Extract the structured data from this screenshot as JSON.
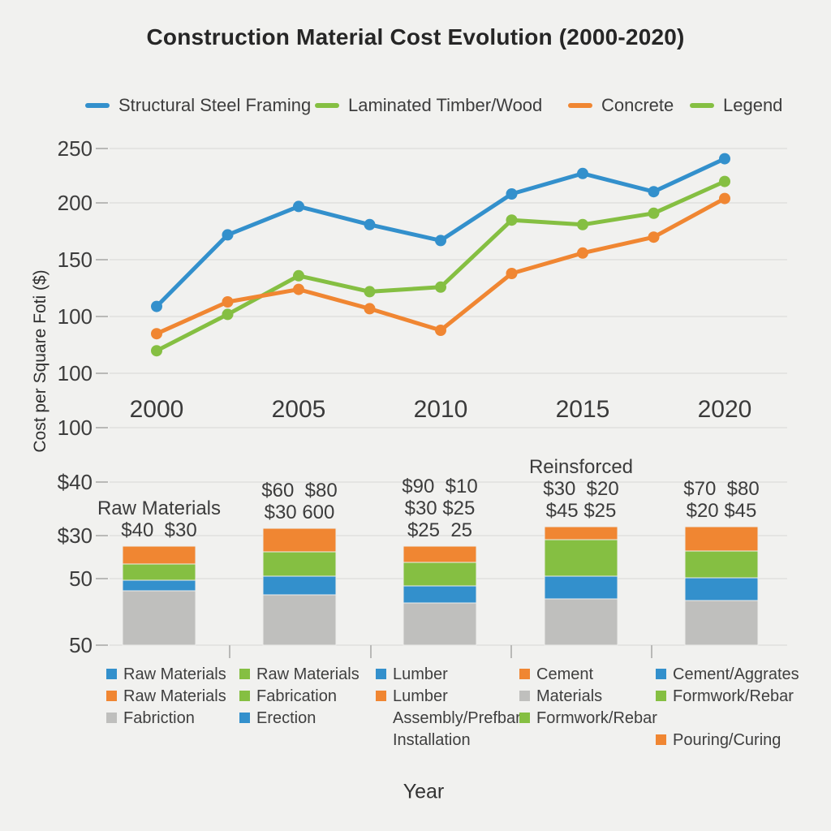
{
  "title": "Construction Material Cost Evolution (2000-2020)",
  "colors": {
    "blue": "#3390cc",
    "green": "#85bf42",
    "orange": "#f08632",
    "gray": "#bfbfbd",
    "grid": "#dcdcda",
    "tick_text": "#3d3d3d",
    "background": "#f1f1ef"
  },
  "legend_top": [
    {
      "label": "Structural Steel Framing",
      "color": "blue"
    },
    {
      "label": "Laminated Timber/Wood",
      "color": "green"
    },
    {
      "label": "Concrete",
      "color": "orange"
    },
    {
      "label": "Legend",
      "color": "green"
    }
  ],
  "chart_data": [
    {
      "type": "line",
      "title": "Construction Material Cost Evolution (2000-2020)",
      "xlabel": "Year",
      "ylabel": "Cost per Square Foti ($)",
      "x_tick_labels": [
        "2000",
        "2005",
        "2010",
        "2015",
        "2020"
      ],
      "y_tick_labels": [
        "250",
        "200",
        "150",
        "100",
        "100",
        "100"
      ],
      "ylim": [
        100,
        260
      ],
      "grid": true,
      "legend_position": "top",
      "x": [
        2000,
        2002.5,
        2005,
        2007.5,
        2010,
        2012.5,
        2015,
        2017.5,
        2020
      ],
      "series": [
        {
          "name": "Structural Steel Framing",
          "color": "blue",
          "values": [
            111,
            174,
            199,
            183,
            169,
            210,
            228,
            212,
            241
          ]
        },
        {
          "name": "Laminated Timber/Wood",
          "color": "green",
          "values": [
            72,
            104,
            138,
            124,
            128,
            187,
            183,
            193,
            221
          ]
        },
        {
          "name": "Concrete",
          "color": "orange",
          "values": [
            87,
            115,
            126,
            109,
            90,
            140,
            158,
            172,
            206
          ]
        }
      ]
    },
    {
      "type": "bar",
      "stacked": true,
      "xlabel": "Year",
      "y_tick_labels": [
        "$40",
        "$30",
        "50",
        "50"
      ],
      "categories": [
        "2000",
        "2005",
        "2010",
        "2015",
        "2020"
      ],
      "segment_order_bottom_to_top": [
        "gray",
        "blue",
        "green",
        "orange"
      ],
      "bars": [
        {
          "labels": [
            "Raw Materials",
            "$40  $30"
          ],
          "segments": [
            [
              "gray",
              67
            ],
            [
              "blue",
              13
            ],
            [
              "green",
              20
            ],
            [
              "orange",
              22
            ]
          ]
        },
        {
          "labels": [
            "$60  $80",
            "$30 600"
          ],
          "segments": [
            [
              "gray",
              62
            ],
            [
              "blue",
              23
            ],
            [
              "green",
              30
            ],
            [
              "orange",
              29
            ]
          ]
        },
        {
          "labels": [
            "$90  $10",
            "$30 $25",
            "$25  25"
          ],
          "segments": [
            [
              "gray",
              52
            ],
            [
              "blue",
              21
            ],
            [
              "green",
              29
            ],
            [
              "orange",
              20
            ]
          ]
        },
        {
          "labels": [
            "Reinsforced",
            "$30  $20",
            "$45 $25"
          ],
          "segments": [
            [
              "gray",
              57
            ],
            [
              "blue",
              28
            ],
            [
              "green",
              45
            ],
            [
              "orange",
              16
            ]
          ]
        },
        {
          "labels": [
            "$70  $80",
            "$20 $45"
          ],
          "segments": [
            [
              "gray",
              55
            ],
            [
              "blue",
              28
            ],
            [
              "green",
              33
            ],
            [
              "orange",
              30
            ]
          ]
        }
      ]
    }
  ],
  "legend_bottom": [
    [
      {
        "swatch": "blue",
        "label": "Raw Materials"
      },
      {
        "swatch": "orange",
        "label": "Raw Materials"
      },
      {
        "swatch": "gray",
        "label": "Fabriction"
      }
    ],
    [
      {
        "swatch": "green",
        "label": "Raw Materials"
      },
      {
        "swatch": "green",
        "label": "Fabrication"
      },
      {
        "swatch": "blue",
        "label": "Erection"
      }
    ],
    [
      {
        "swatch": "blue",
        "label": "Lumber"
      },
      {
        "swatch": "orange",
        "label": "Lumber"
      },
      {
        "swatch": null,
        "label": "Assembly/Prefbarc"
      },
      {
        "swatch": null,
        "label": "Installation"
      }
    ],
    [
      {
        "swatch": "orange",
        "label": "Cement"
      },
      {
        "swatch": "gray",
        "label": "Materials"
      },
      {
        "swatch": "green",
        "label": "Formwork/Rebar"
      }
    ],
    [
      {
        "swatch": "blue",
        "label": "Cement/Aggrates"
      },
      {
        "swatch": "green",
        "label": "Formwork/Rebar"
      },
      {
        "swatch": null,
        "label": ""
      },
      {
        "swatch": "orange",
        "label": "Pouring/Curing"
      }
    ]
  ]
}
